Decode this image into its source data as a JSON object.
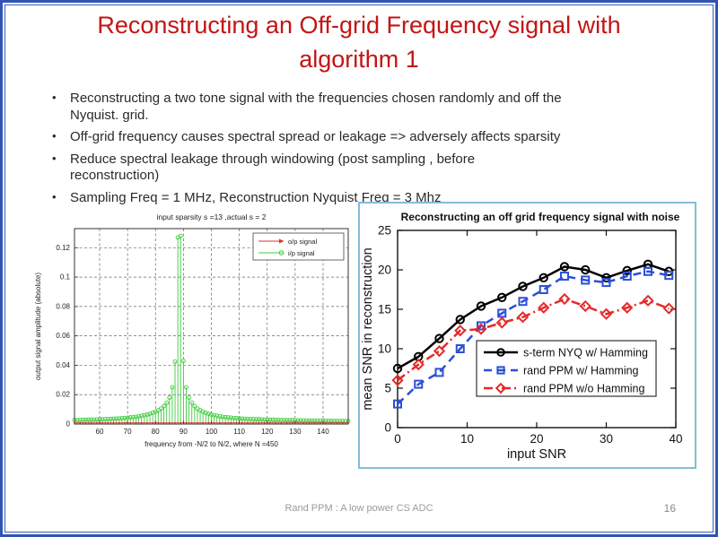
{
  "slide": {
    "title_lines": [
      "Reconstructing an Off-grid Frequency signal with",
      "algorithm 1"
    ],
    "bullets": [
      {
        "lines": [
          "Reconstructing a two tone signal with the frequencies chosen randomly and off the",
          "Nyquist. grid."
        ]
      },
      {
        "lines": [
          "Off-grid frequency causes spectral spread or leakage => adversely affects sparsity"
        ]
      },
      {
        "lines": [
          "Reduce spectral leakage through windowing (post sampling , before",
          "reconstruction)"
        ]
      },
      {
        "lines": [
          "Sampling Freq = 1 MHz, Reconstruction Nyquist Freq = 3 Mhz"
        ]
      }
    ],
    "footer": "Rand PPM : A low power CS ADC",
    "page_number": "16",
    "colors": {
      "title": "#c41414",
      "slide_border": "#3053b4",
      "right_chart_border": "#84bcd8",
      "body_text": "#2a2a2a",
      "footer_text": "#9b9b9b"
    }
  },
  "chart_data": [
    {
      "type": "bar",
      "subtype": "stem",
      "title": "input sparsity s =13 ,actual s = 2",
      "xlabel": "frequency from -N/2 to N/2, where N =450",
      "ylabel": "output signal amplitude (absolute)",
      "xlim": [
        51,
        149
      ],
      "ylim": [
        0,
        0.133
      ],
      "xticks": [
        60,
        70,
        80,
        90,
        100,
        110,
        120,
        130,
        140
      ],
      "yticks": [
        0,
        0.02,
        0.04,
        0.06,
        0.08,
        0.1,
        0.12
      ],
      "grid": true,
      "legend_position": "upper-right-inside",
      "series": [
        {
          "name": "i/p signal",
          "color": "#3fcc3f",
          "marker": "circle",
          "x_start": 51,
          "x_step": 1,
          "values": [
            0.0027,
            0.0027,
            0.0028,
            0.0028,
            0.0029,
            0.0029,
            0.003,
            0.003,
            0.0031,
            0.0032,
            0.0032,
            0.0033,
            0.0034,
            0.0035,
            0.0036,
            0.0037,
            0.0038,
            0.004,
            0.0041,
            0.0043,
            0.0045,
            0.0047,
            0.0049,
            0.0052,
            0.0056,
            0.006,
            0.0064,
            0.007,
            0.0076,
            0.0084,
            0.0093,
            0.0105,
            0.0122,
            0.0145,
            0.018,
            0.025,
            0.0425,
            0.127,
            0.128,
            0.043,
            0.025,
            0.018,
            0.0145,
            0.0122,
            0.0105,
            0.0093,
            0.0084,
            0.0076,
            0.007,
            0.0064,
            0.006,
            0.0056,
            0.0052,
            0.0049,
            0.0047,
            0.0045,
            0.0043,
            0.0041,
            0.004,
            0.0038,
            0.0037,
            0.0036,
            0.0035,
            0.0034,
            0.0033,
            0.0032,
            0.0032,
            0.0031,
            0.003,
            0.003,
            0.0029,
            0.0029,
            0.0028,
            0.0028,
            0.0027,
            0.0027,
            0.0026,
            0.0026,
            0.0026,
            0.0025,
            0.0025,
            0.0025,
            0.0024,
            0.0024,
            0.0024,
            0.0023,
            0.0023,
            0.0023,
            0.0023,
            0.0022,
            0.0022,
            0.0022,
            0.0022,
            0.0021,
            0.0021,
            0.0021,
            0.0021,
            0.002,
            0.002
          ]
        },
        {
          "name": "o/p signal",
          "color": "#e03030",
          "marker": "arrow",
          "constant_value": 0.0008
        }
      ]
    },
    {
      "type": "line",
      "title": "Reconstructing an off grid frequency signal with noise",
      "xlabel": "input SNR",
      "ylabel": "mean SNR in reconstruction",
      "xlim": [
        0,
        40
      ],
      "ylim": [
        0,
        25
      ],
      "xticks": [
        0,
        10,
        20,
        30,
        40
      ],
      "yticks": [
        0,
        5,
        10,
        15,
        20,
        25
      ],
      "grid": false,
      "legend_position": "lower-right-inside",
      "x": [
        0,
        3,
        6,
        9,
        12,
        15,
        18,
        21,
        24,
        27,
        30,
        33,
        36,
        39
      ],
      "series": [
        {
          "name": "s-term NYQ w/ Hamming",
          "color": "#000000",
          "linestyle": "solid",
          "marker": "circle",
          "values": [
            7.5,
            9.0,
            11.3,
            13.7,
            15.4,
            16.5,
            17.9,
            19.0,
            20.4,
            20.0,
            19.0,
            19.9,
            20.7,
            19.8
          ]
        },
        {
          "name": "rand PPM w/ Hamming",
          "color": "#2b4fd8",
          "linestyle": "dashed",
          "marker": "square",
          "values": [
            3.0,
            5.5,
            7.0,
            10.0,
            12.9,
            14.5,
            16.0,
            17.5,
            19.2,
            18.7,
            18.4,
            19.2,
            19.8,
            19.3
          ]
        },
        {
          "name": "rand PPM w/o Hamming",
          "color": "#e62929",
          "linestyle": "dashdot",
          "marker": "diamond",
          "values": [
            6.0,
            8.0,
            9.7,
            12.3,
            12.5,
            13.3,
            14.0,
            15.2,
            16.3,
            15.4,
            14.4,
            15.2,
            16.1,
            15.1
          ]
        }
      ]
    }
  ]
}
